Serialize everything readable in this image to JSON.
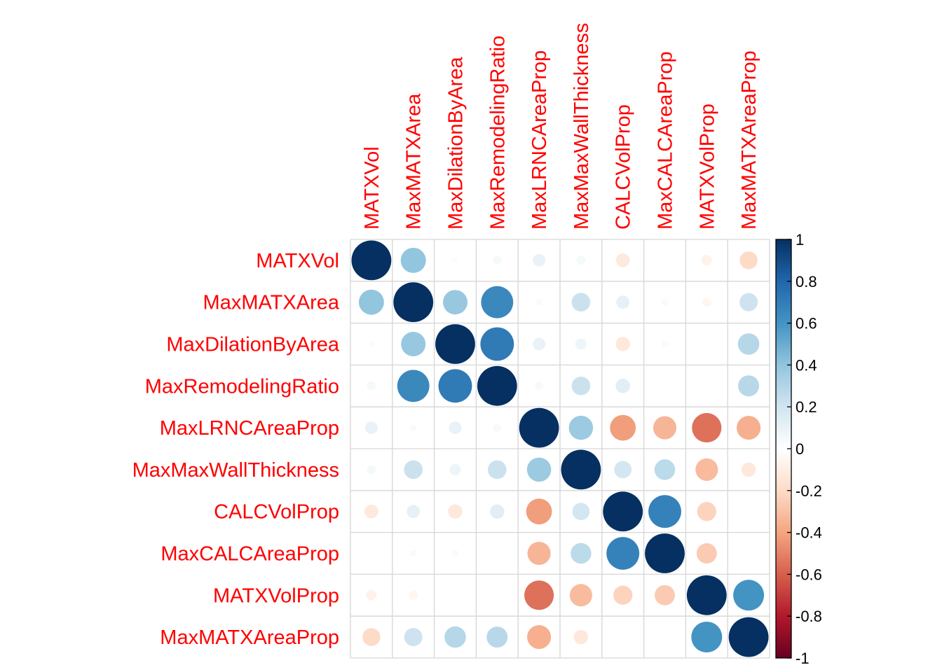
{
  "chart_data": {
    "type": "heatmap",
    "style": "circle",
    "variables": [
      "MATXVol",
      "MaxMATXArea",
      "MaxDilationByArea",
      "MaxRemodelingRatio",
      "MaxLRNCAreaProp",
      "MaxMaxWallThickness",
      "CALCVolProp",
      "MaxCALCAreaProp",
      "MATXVolProp",
      "MaxMATXAreaProp"
    ],
    "matrix": [
      [
        1.0,
        0.4,
        0.02,
        0.05,
        0.1,
        0.05,
        -0.12,
        0.0,
        -0.07,
        -0.2
      ],
      [
        0.4,
        1.0,
        0.38,
        0.65,
        0.03,
        0.22,
        0.11,
        0.03,
        -0.05,
        0.21
      ],
      [
        0.02,
        0.38,
        1.0,
        0.71,
        0.1,
        0.08,
        -0.13,
        0.03,
        0.0,
        0.29
      ],
      [
        0.05,
        0.65,
        0.71,
        1.0,
        0.04,
        0.22,
        0.13,
        0.01,
        0.0,
        0.28
      ],
      [
        0.1,
        0.03,
        0.1,
        0.04,
        1.0,
        0.37,
        -0.42,
        -0.34,
        -0.55,
        -0.36
      ],
      [
        0.05,
        0.22,
        0.08,
        0.22,
        0.37,
        1.0,
        0.19,
        0.27,
        -0.32,
        -0.13
      ],
      [
        -0.12,
        0.11,
        -0.13,
        0.13,
        -0.42,
        0.19,
        1.0,
        0.68,
        -0.23,
        0.0
      ],
      [
        0.0,
        0.03,
        0.03,
        0.01,
        -0.34,
        0.27,
        0.68,
        1.0,
        -0.26,
        0.0
      ],
      [
        -0.07,
        -0.05,
        0.0,
        0.0,
        -0.55,
        -0.32,
        -0.23,
        -0.26,
        1.0,
        0.6
      ],
      [
        -0.2,
        0.21,
        0.29,
        0.28,
        -0.36,
        -0.13,
        0.0,
        0.0,
        0.6,
        1.0
      ]
    ],
    "colorbar": {
      "range": [
        -1,
        1
      ],
      "tick_labels": [
        "1",
        "0.8",
        "0.6",
        "0.4",
        "0.2",
        "0",
        "-0.2",
        "-0.4",
        "-0.6",
        "-0.8",
        "-1"
      ],
      "tick_values": [
        1,
        0.8,
        0.6,
        0.4,
        0.2,
        0,
        -0.2,
        -0.4,
        -0.6,
        -0.8,
        -1
      ],
      "colors_low_to_high": [
        "#67001F",
        "#B2182B",
        "#D6604D",
        "#F4A582",
        "#FDDBC7",
        "#FFFFFF",
        "#D1E5F0",
        "#92C5DE",
        "#4393C3",
        "#2166AC",
        "#053061"
      ]
    },
    "label_color": "#FF0000",
    "grid": true,
    "legend_position": "right"
  }
}
